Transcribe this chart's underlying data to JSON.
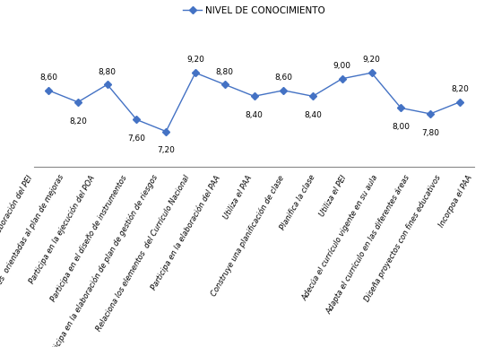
{
  "categories": [
    "Participa en la elaboración del PEI",
    "actividades  orientadas al plan de mejoras",
    "Participa en la ejecución del POA",
    "Participa en el diseño de instrumentos",
    "Participa en la elaboración de plan de gestión de riesgos",
    "Relaciona los elementos  del Currículo Nacional",
    "Participa en la elaboración del PAA",
    "Utiliza el PAA",
    "Construye una planificación de clase",
    "Planifica la clase",
    "Utiliza el PEI",
    "Adecúa el currículo vigente en su aula",
    "Adapta el currículo en las diferentes áreas",
    "Diseña proyectos con fines educativos",
    "Incorpoa el PAA"
  ],
  "values": [
    8.6,
    8.2,
    8.8,
    7.6,
    7.2,
    9.2,
    8.8,
    8.4,
    8.6,
    8.4,
    9.0,
    9.2,
    8.0,
    7.8,
    8.2
  ],
  "line_color": "#4472C4",
  "marker_style": "D",
  "marker_size": 4,
  "legend_label": "NIVEL DE CONOCIMIENTO",
  "ylim": [
    6.0,
    10.5
  ],
  "value_fontsize": 6.5,
  "legend_fontsize": 7.5,
  "tick_label_fontsize": 6.0
}
